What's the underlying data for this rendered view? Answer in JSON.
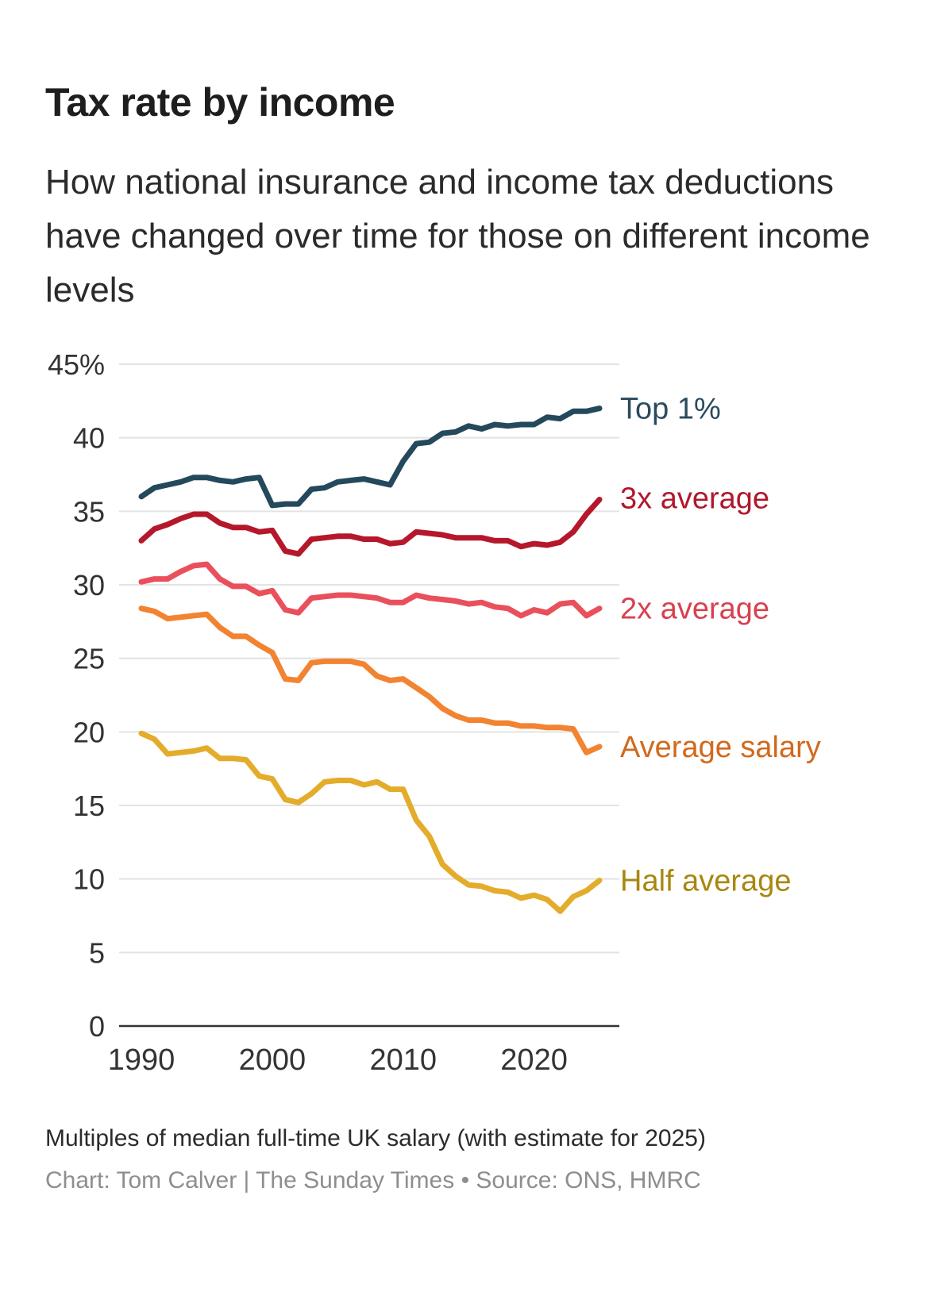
{
  "header": {
    "title": "Tax rate by income",
    "subtitle": "How national insurance and income tax deductions have changed over time for those on different income levels"
  },
  "footer": {
    "note": "Multiples of median full-time UK salary (with estimate for 2025)",
    "credit": "Chart: Tom Calver | The Sunday Times • Source: ONS, HMRC"
  },
  "chart_data": {
    "type": "line",
    "title": "Tax rate by income",
    "xlabel": "",
    "ylabel": "",
    "x": [
      1990,
      1991,
      1992,
      1993,
      1994,
      1995,
      1996,
      1997,
      1998,
      1999,
      2000,
      2001,
      2002,
      2003,
      2004,
      2005,
      2006,
      2007,
      2008,
      2009,
      2010,
      2011,
      2012,
      2013,
      2014,
      2015,
      2016,
      2017,
      2018,
      2019,
      2020,
      2021,
      2022,
      2023,
      2024,
      2025
    ],
    "xlim": [
      1990,
      2026
    ],
    "ylim": [
      0,
      45
    ],
    "x_ticks": [
      1990,
      2000,
      2010,
      2020
    ],
    "x_tick_labels": [
      "1990",
      "2000",
      "2010",
      "2020"
    ],
    "y_ticks": [
      0,
      5,
      10,
      15,
      20,
      25,
      30,
      35,
      40,
      45
    ],
    "y_tick_labels": [
      "0",
      "5",
      "10",
      "15",
      "20",
      "25",
      "30",
      "35",
      "40",
      "45%"
    ],
    "grid": true,
    "legend": "direct labels at right end of lines",
    "series": [
      {
        "name": "Top 1%",
        "color": "#25495c",
        "label_color": "#2c4a5e",
        "values": [
          36.0,
          36.6,
          36.8,
          37.0,
          37.3,
          37.3,
          37.1,
          37.0,
          37.2,
          37.3,
          35.4,
          35.5,
          35.5,
          36.5,
          36.6,
          37.0,
          37.1,
          37.2,
          37.0,
          36.8,
          38.4,
          39.6,
          39.7,
          40.3,
          40.4,
          40.8,
          40.6,
          40.9,
          40.8,
          40.9,
          40.9,
          41.4,
          41.3,
          41.8,
          41.8,
          42.0
        ]
      },
      {
        "name": "3x average",
        "color": "#b5182b",
        "label_color": "#b0182c",
        "values": [
          33.0,
          33.8,
          34.1,
          34.5,
          34.8,
          34.8,
          34.2,
          33.9,
          33.9,
          33.6,
          33.7,
          32.3,
          32.1,
          33.1,
          33.2,
          33.3,
          33.3,
          33.1,
          33.1,
          32.8,
          32.9,
          33.6,
          33.5,
          33.4,
          33.2,
          33.2,
          33.2,
          33.0,
          33.0,
          32.6,
          32.8,
          32.7,
          32.9,
          33.6,
          34.8,
          35.8
        ]
      },
      {
        "name": "2x average",
        "color": "#e9505c",
        "label_color": "#d8414f",
        "values": [
          30.2,
          30.4,
          30.4,
          30.9,
          31.3,
          31.4,
          30.4,
          29.9,
          29.9,
          29.4,
          29.6,
          28.3,
          28.1,
          29.1,
          29.2,
          29.3,
          29.3,
          29.2,
          29.1,
          28.8,
          28.8,
          29.3,
          29.1,
          29.0,
          28.9,
          28.7,
          28.8,
          28.5,
          28.4,
          27.9,
          28.3,
          28.1,
          28.7,
          28.8,
          27.9,
          28.4
        ]
      },
      {
        "name": "Average salary",
        "color": "#f28331",
        "label_color": "#d2691c",
        "values": [
          28.4,
          28.2,
          27.7,
          27.8,
          27.9,
          28.0,
          27.1,
          26.5,
          26.5,
          25.9,
          25.4,
          23.6,
          23.5,
          24.7,
          24.8,
          24.8,
          24.8,
          24.6,
          23.8,
          23.5,
          23.6,
          23.0,
          22.4,
          21.6,
          21.1,
          20.8,
          20.8,
          20.6,
          20.6,
          20.4,
          20.4,
          20.3,
          20.3,
          20.2,
          18.6,
          19.0
        ]
      },
      {
        "name": "Half average",
        "color": "#e4ac2b",
        "label_color": "#a8870f",
        "values": [
          19.9,
          19.5,
          18.5,
          18.6,
          18.7,
          18.9,
          18.2,
          18.2,
          18.1,
          17.0,
          16.8,
          15.4,
          15.2,
          15.8,
          16.6,
          16.7,
          16.7,
          16.4,
          16.6,
          16.1,
          16.1,
          14.0,
          12.9,
          11.0,
          10.2,
          9.6,
          9.5,
          9.2,
          9.1,
          8.7,
          8.9,
          8.6,
          7.8,
          8.8,
          9.2,
          9.9
        ]
      }
    ]
  }
}
